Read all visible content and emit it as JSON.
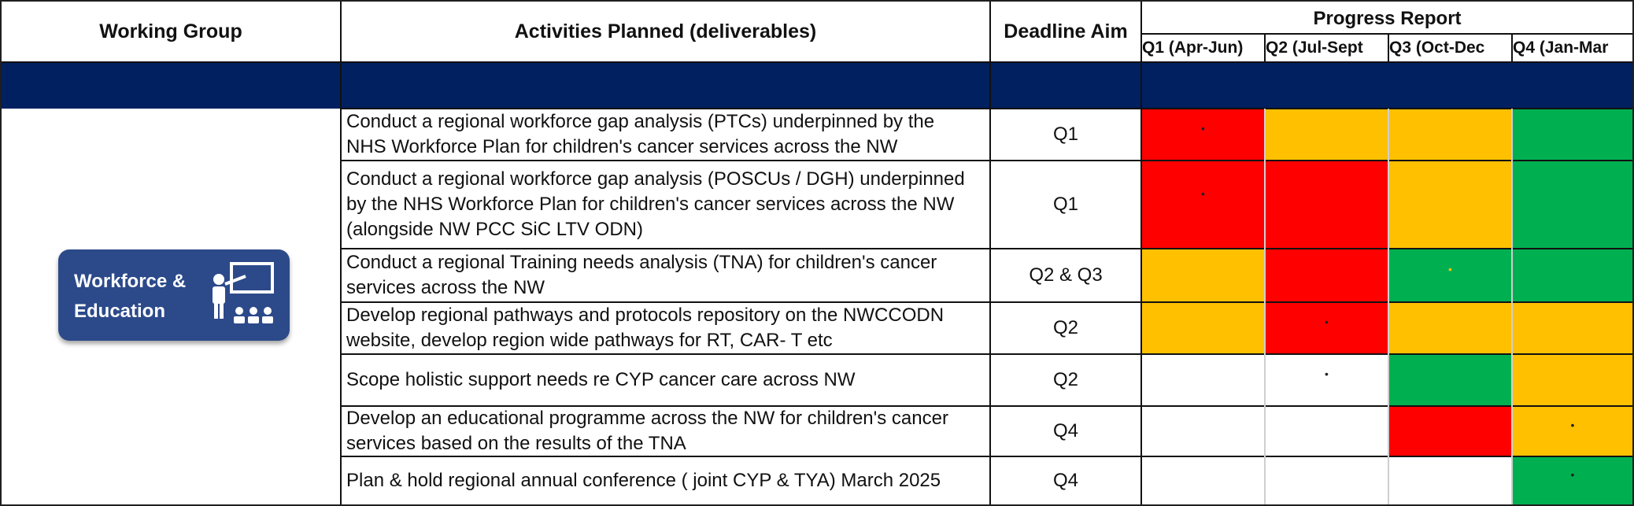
{
  "headers": {
    "working_group": "Working Group",
    "activities": "Activities Planned (deliverables)",
    "deadline": "Deadline Aim",
    "progress": "Progress Report",
    "quarters": [
      "Q1 (Apr-Jun)",
      "Q2 (Jul-Sept",
      "Q3 (Oct-Dec",
      "Q4 (Jan-Mar"
    ]
  },
  "colors": {
    "band": "#002060",
    "red": "#ff0000",
    "amber": "#ffc000",
    "green": "#00b050",
    "white": "#ffffff"
  },
  "working_group_badge": {
    "label": "Workforce &\nEducation",
    "icon": "teacher-presentation-icon"
  },
  "rows": [
    {
      "activity": "Conduct a regional workforce gap analysis (PTCs) underpinned by the\nNHS Workforce Plan for children's cancer services across the NW",
      "deadline": "Q1",
      "status": [
        "red",
        "amber",
        "amber",
        "green"
      ],
      "marks": [
        true,
        false,
        false,
        false
      ]
    },
    {
      "activity": "Conduct a regional workforce gap analysis (POSCUs / DGH) underpinned\nby the NHS Workforce Plan for children's cancer services across the NW\n(alongside NW PCC SiC LTV ODN)",
      "deadline": "Q1",
      "status": [
        "red",
        "red",
        "amber",
        "green"
      ],
      "marks": [
        true,
        false,
        false,
        false
      ]
    },
    {
      "activity": "Conduct a regional Training needs analysis (TNA) for children's cancer\nservices across the NW",
      "deadline": "Q2 & Q3",
      "status": [
        "amber",
        "red",
        "green",
        "green"
      ],
      "marks": [
        false,
        false,
        true,
        false
      ]
    },
    {
      "activity": "Develop regional pathways and protocols repository on the NWCCODN\nwebsite, develop region wide pathways for RT, CAR- T etc",
      "deadline": "Q2",
      "status": [
        "amber",
        "red",
        "amber",
        "amber"
      ],
      "marks": [
        false,
        true,
        false,
        false
      ]
    },
    {
      "activity": "Scope holistic support needs re CYP cancer care across NW",
      "deadline": "Q2",
      "status": [
        "white",
        "white",
        "green",
        "amber"
      ],
      "marks": [
        false,
        true,
        false,
        false
      ]
    },
    {
      "activity": "Develop an educational programme across the NW for children's cancer\nservices based on the results of the TNA",
      "deadline": "Q4",
      "status": [
        "white",
        "white",
        "red",
        "amber"
      ],
      "marks": [
        false,
        false,
        false,
        true
      ]
    },
    {
      "activity": "Plan & hold regional annual conference ( joint CYP & TYA) March 2025",
      "deadline": "Q4",
      "status": [
        "white",
        "white",
        "white",
        "green"
      ],
      "marks": [
        false,
        false,
        false,
        true
      ]
    }
  ]
}
